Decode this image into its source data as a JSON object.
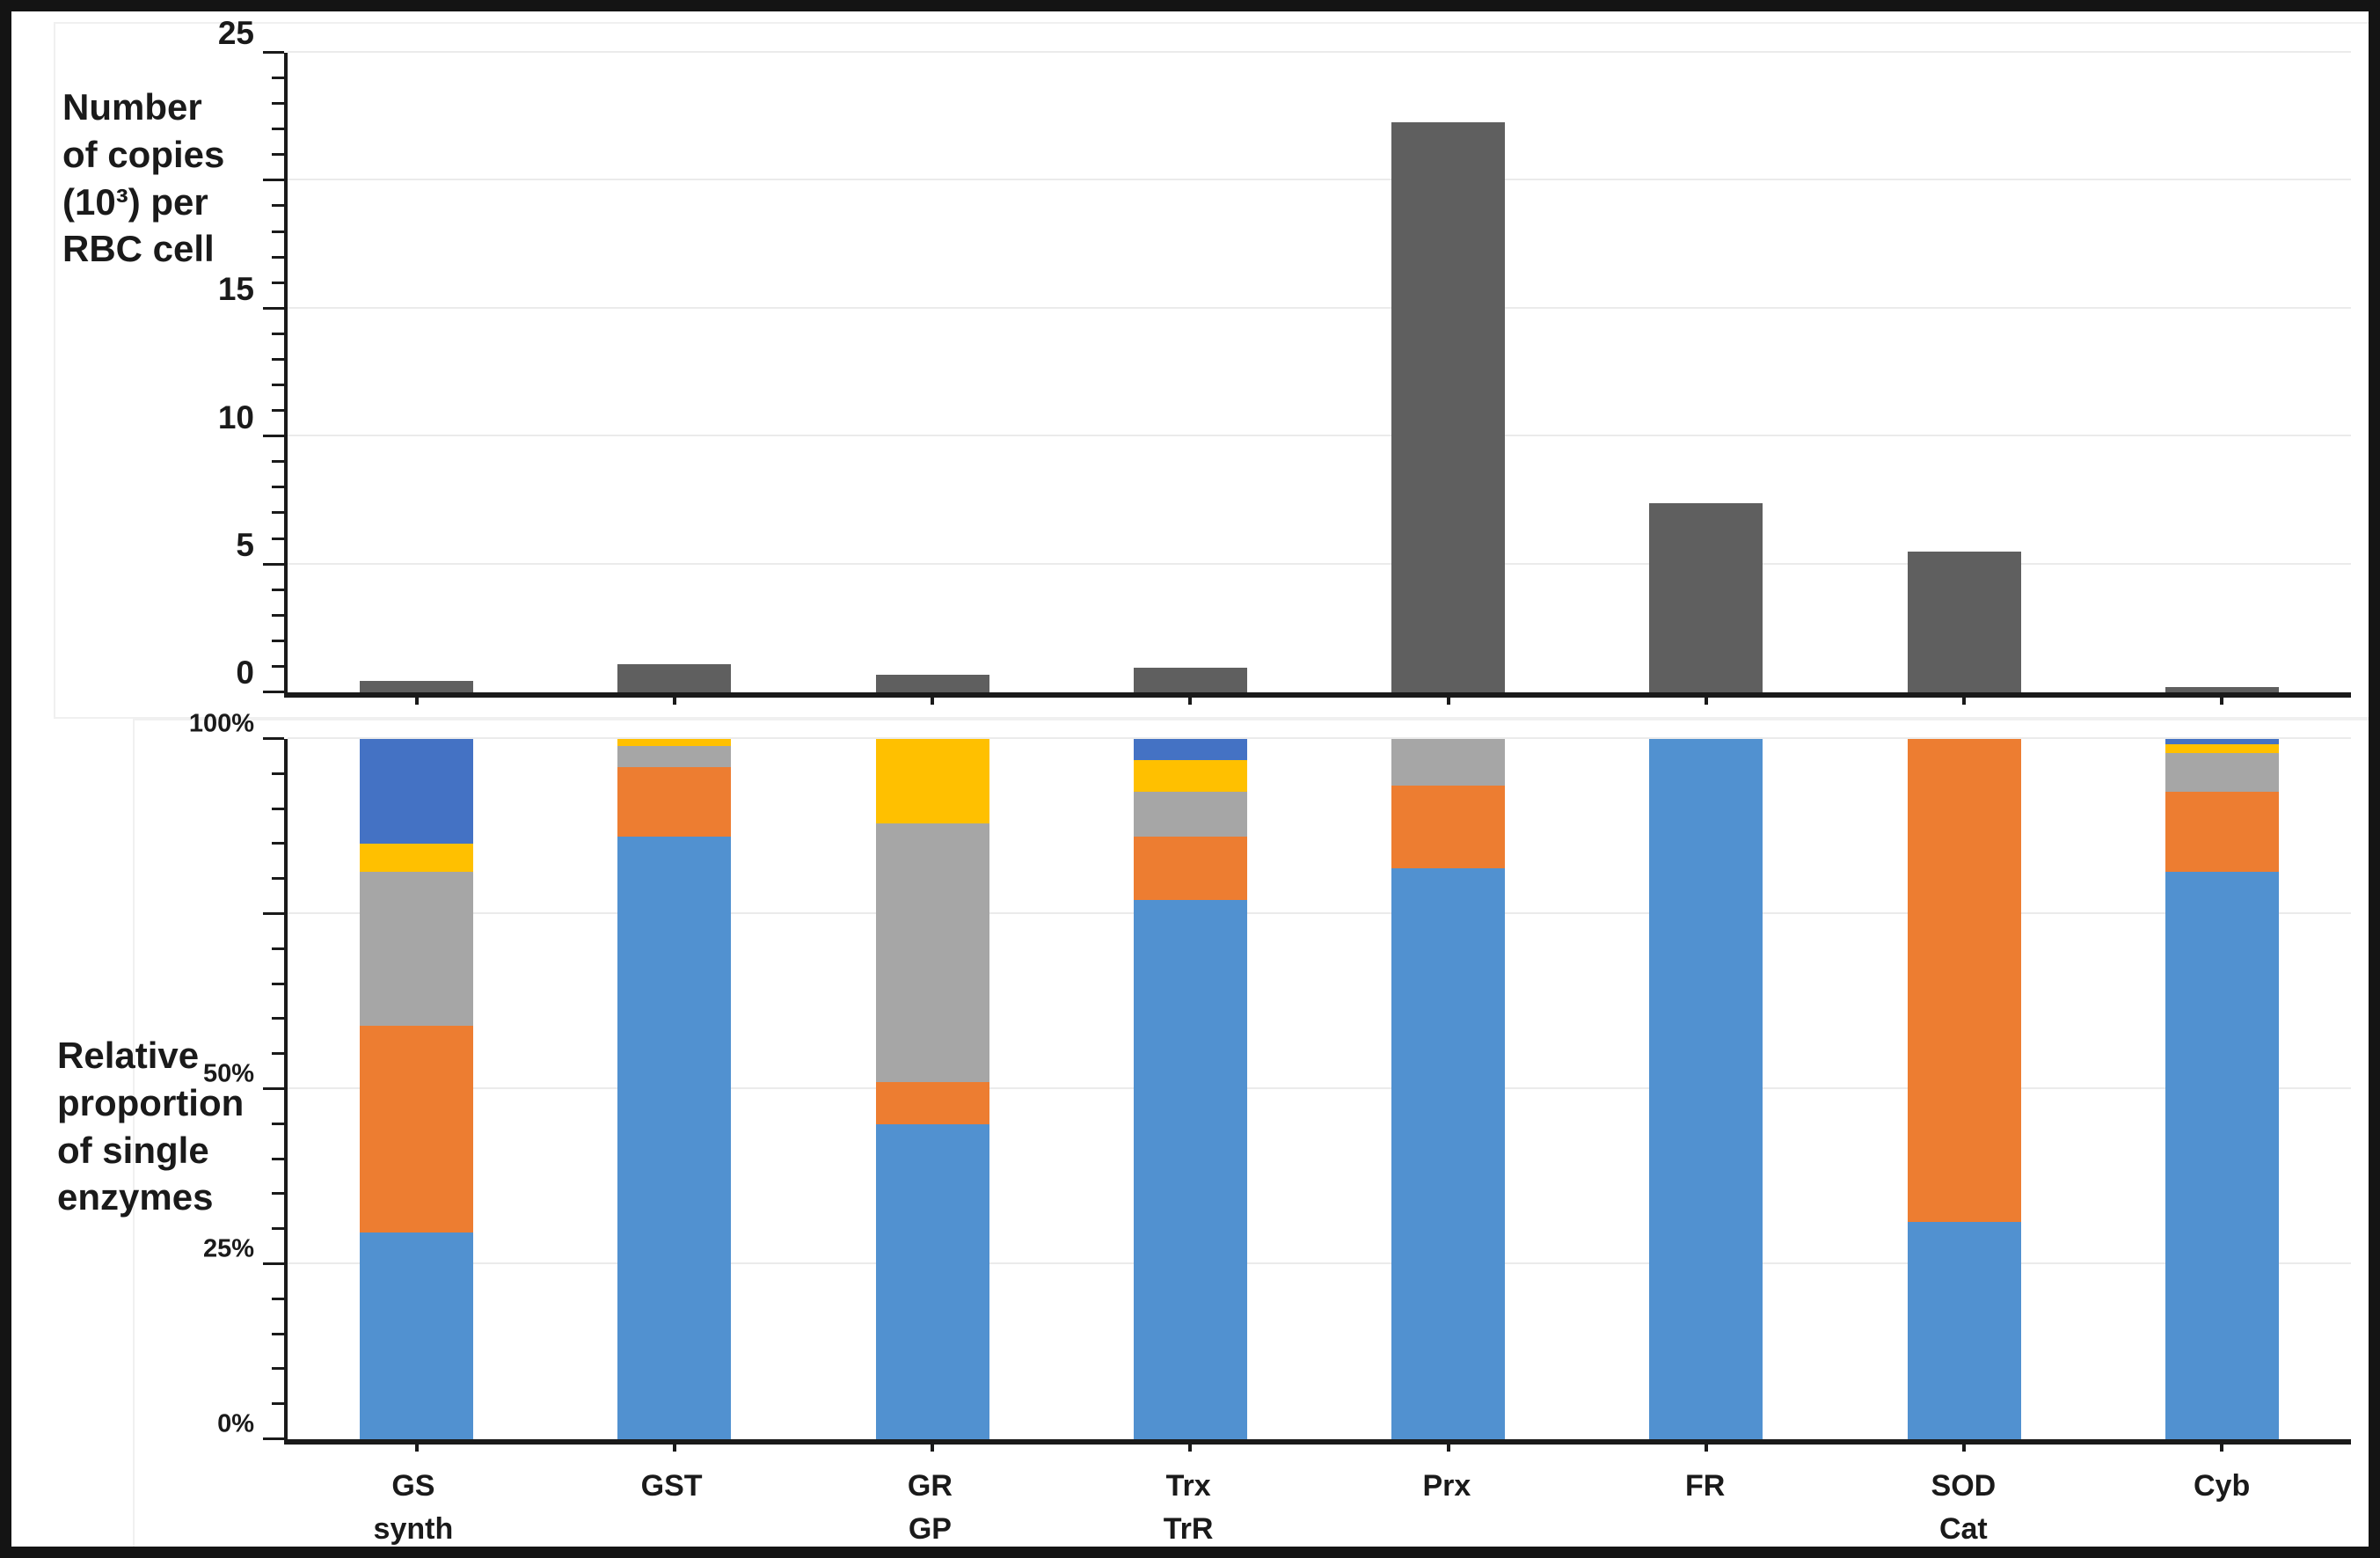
{
  "figure": {
    "background": "#ffffff",
    "border_color": "#141414",
    "axis_color": "#1a1a1a",
    "gridline_color": "#ebebeb"
  },
  "chart_data": [
    {
      "type": "bar",
      "name": "copies-per-rbc",
      "ylabel_lines": [
        "Number",
        "of copies",
        "(10³) per",
        "RBC cell"
      ],
      "categories": [
        [
          "GS",
          "synth"
        ],
        [
          "GST"
        ],
        [
          "GR",
          "GP"
        ],
        [
          "Trx",
          "TrR"
        ],
        [
          "Prx"
        ],
        [
          "FR"
        ],
        [
          "SOD",
          "Cat"
        ],
        [
          "Cyb"
        ]
      ],
      "values": [
        0.45,
        1.1,
        0.7,
        0.95,
        22.3,
        7.4,
        5.5,
        0.2
      ],
      "bar_color": "#5f5f5f",
      "ylim": [
        0,
        25
      ],
      "ytick_labels": [
        {
          "value": 25,
          "label": "25"
        },
        {
          "value": 15,
          "label": "15"
        },
        {
          "value": 10,
          "label": "10"
        },
        {
          "value": 5,
          "label": "5"
        },
        {
          "value": 0,
          "label": "0"
        }
      ],
      "major_tick_step": 5,
      "minor_tick_step": 1,
      "gridline_step": 5,
      "grid": "on",
      "legend": "none"
    },
    {
      "type": "stacked_bar_100",
      "name": "relative-proportion",
      "ylabel_lines": [
        "Relative",
        "proportion",
        "of single",
        "enzymes"
      ],
      "categories": [
        [
          "GS",
          "synth"
        ],
        [
          "GST"
        ],
        [
          "GR",
          "GP"
        ],
        [
          "Trx",
          "TrR"
        ],
        [
          "Prx"
        ],
        [
          "FR"
        ],
        [
          "SOD",
          "Cat"
        ],
        [
          "Cyb"
        ]
      ],
      "series": [
        {
          "name": "blue",
          "color": "#5191d0",
          "values": [
            29.5,
            86,
            45,
            77,
            81.5,
            100,
            31,
            81
          ]
        },
        {
          "name": "orange",
          "color": "#ed7d31",
          "values": [
            29.5,
            10,
            6,
            9,
            11.8,
            0,
            69,
            11.5
          ]
        },
        {
          "name": "gray",
          "color": "#a6a6a6",
          "values": [
            22,
            3,
            37,
            6.5,
            6.7,
            0,
            0,
            5.5
          ]
        },
        {
          "name": "yellow",
          "color": "#ffc000",
          "values": [
            4,
            1,
            12,
            4.5,
            0,
            0,
            0,
            1.2
          ]
        },
        {
          "name": "dark-blue",
          "color": "#4472c4",
          "values": [
            15,
            0,
            0,
            3,
            0,
            0,
            0,
            0.8
          ]
        }
      ],
      "ylim_percent": [
        0,
        100
      ],
      "ytick_labels": [
        {
          "value": 100,
          "label": "100%"
        },
        {
          "value": 50,
          "label": "50%"
        },
        {
          "value": 25,
          "label": "25%"
        },
        {
          "value": 0,
          "label": "0%"
        }
      ],
      "major_tick_step": 25,
      "minor_tick_step": 5,
      "gridline_step": 25,
      "grid": "on",
      "legend": "none"
    }
  ]
}
